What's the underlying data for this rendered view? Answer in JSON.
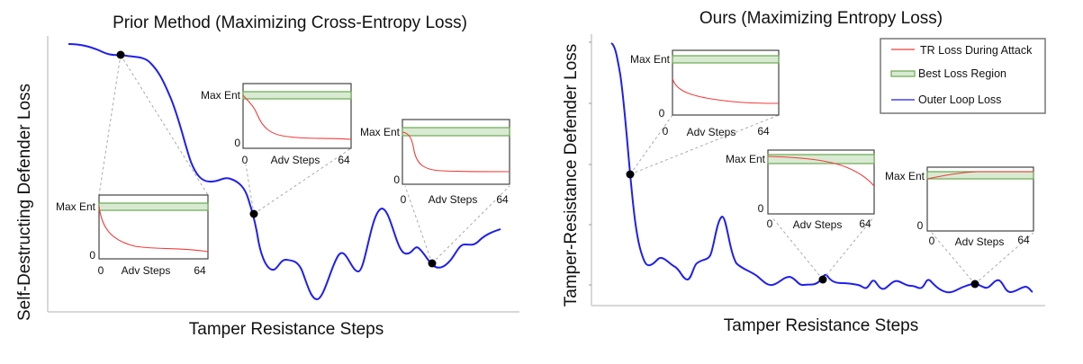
{
  "left_panel": {
    "title": "Prior Method (Maximizing Cross-Entropy Loss)",
    "ylabel": "Self-Destructing Defender Loss",
    "xlabel": "Tamper Resistance Steps"
  },
  "right_panel": {
    "title": "Ours (Maximizing Entropy Loss)",
    "ylabel": "Tamper-Resistance Defender Loss",
    "xlabel": "Tamper Resistance Steps"
  },
  "inset": {
    "ymax_label": "Max Ent",
    "ymin_label": "0",
    "xmin_label": "0",
    "xlabel": "Adv Steps",
    "xmax_label": "64"
  },
  "legend": {
    "items": [
      {
        "label": "TR Loss During Attack",
        "icon": "red-line",
        "color": "#f03c3c"
      },
      {
        "label": "Best Loss Region",
        "icon": "green-rect",
        "color": "#d9ead3"
      },
      {
        "label": "Outer Loop Loss",
        "icon": "blue-line",
        "color": "#1f1fee"
      }
    ]
  },
  "colors": {
    "outer_loop": "#1f1fee",
    "tr_loss": "#f03c3c",
    "best_region_fill": "#d9ead3",
    "best_region_stroke": "#6aa84f"
  }
}
